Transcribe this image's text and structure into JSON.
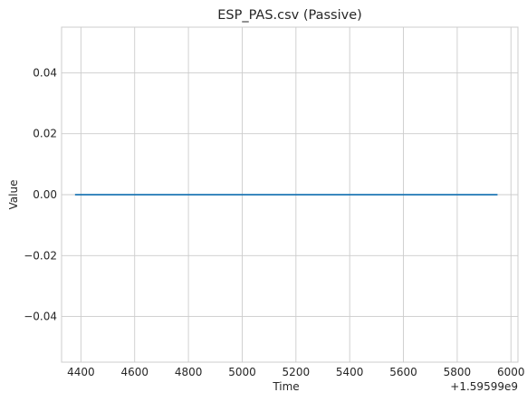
{
  "chart_data": {
    "type": "line",
    "title": "ESP_PAS.csv (Passive)",
    "xlabel": "Time",
    "ylabel": "Value",
    "x_offset_label": "+1.59599e9",
    "xlim": [
      4328,
      6026
    ],
    "ylim": [
      -0.055,
      0.055
    ],
    "x_ticks": [
      4400,
      4600,
      4800,
      5000,
      5200,
      5400,
      5600,
      5800,
      6000
    ],
    "x_tick_labels": [
      "4400",
      "4600",
      "4800",
      "5000",
      "5200",
      "5400",
      "5600",
      "5800",
      "6000"
    ],
    "y_ticks": [
      -0.04,
      -0.02,
      0.0,
      0.02,
      0.04
    ],
    "y_tick_labels": [
      "−0.04",
      "−0.02",
      "0.00",
      "0.02",
      "0.04"
    ],
    "grid": true,
    "series": [
      {
        "color": "#1f77b4",
        "x": [
          4378,
          5950
        ],
        "y": [
          0.0,
          0.0
        ]
      }
    ]
  }
}
